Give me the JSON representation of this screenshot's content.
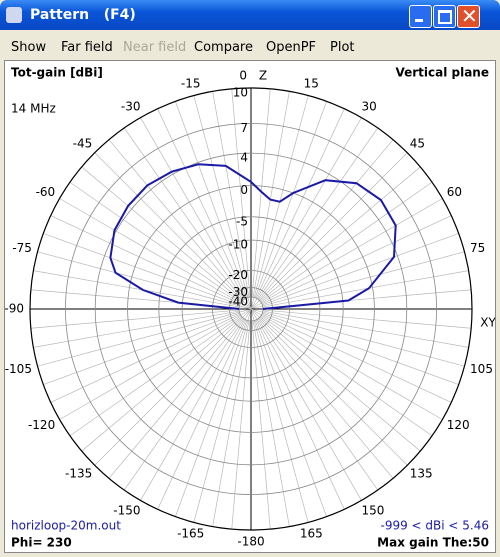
{
  "window": {
    "title": "Pattern   (F4)"
  },
  "menu": [
    "Show",
    "Far field",
    "Near field",
    "Compare",
    "OpenPF",
    "Plot"
  ],
  "plot": {
    "gain_label": "Tot-gain [dBi]",
    "plane": "Vertical plane",
    "frequency": "14 MHz",
    "z_label": "Z",
    "xy_label": "XY",
    "rings": [
      10,
      7,
      4,
      0,
      -5,
      -10,
      -20,
      -30,
      -40
    ],
    "angle_ticks": [
      0,
      15,
      30,
      45,
      60,
      75,
      105,
      120,
      135,
      150,
      165,
      -15,
      -30,
      -45,
      -60,
      -75,
      -90,
      -105,
      -120,
      -135,
      -150,
      -165,
      -180
    ],
    "file": "horizloop-20m.out",
    "phi": "Phi= 230",
    "range": "-999 < dBi < 5.46",
    "max_gain": "Max gain The:50"
  },
  "pattern": {
    "color": "#1a1aa6",
    "angles": [
      -90,
      -85,
      -80,
      -75,
      -70,
      -60,
      -50,
      -40,
      -30,
      -20,
      -10,
      0,
      5,
      10,
      15,
      20,
      30,
      40,
      50,
      60,
      70,
      80,
      85,
      90
    ],
    "gains": [
      -40,
      -9,
      -2,
      2.2,
      3.3,
      4.2,
      4.5,
      4.6,
      4.3,
      3.8,
      2.8,
      0.5,
      -0.8,
      -1.8,
      -1.8,
      0,
      3.2,
      4.9,
      5.46,
      5.2,
      3.6,
      -0.5,
      -4,
      -40
    ]
  }
}
